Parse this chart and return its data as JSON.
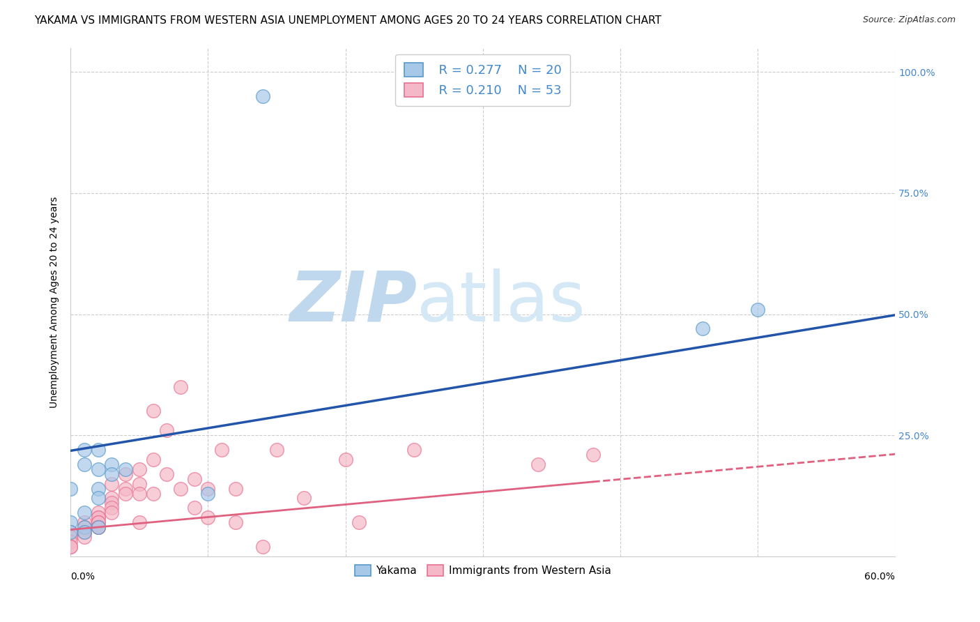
{
  "title": "YAKAMA VS IMMIGRANTS FROM WESTERN ASIA UNEMPLOYMENT AMONG AGES 20 TO 24 YEARS CORRELATION CHART",
  "source": "Source: ZipAtlas.com",
  "ylabel": "Unemployment Among Ages 20 to 24 years",
  "xlabel_bottom_left": "0.0%",
  "xlabel_bottom_right": "60.0%",
  "xmin": 0.0,
  "xmax": 0.6,
  "ymin": 0.0,
  "ymax": 1.05,
  "yticks": [
    0.0,
    0.25,
    0.5,
    0.75,
    1.0
  ],
  "ytick_labels": [
    "",
    "25.0%",
    "50.0%",
    "75.0%",
    "100.0%"
  ],
  "background_color": "#ffffff",
  "watermark_zip_color": "#b8d4e8",
  "watermark_atlas_color": "#c8dff0",
  "legend_r1": "R = 0.277",
  "legend_n1": "N = 20",
  "legend_r2": "R = 0.210",
  "legend_n2": "N = 53",
  "blue_scatter_color": "#a8c8e8",
  "blue_edge_color": "#5599cc",
  "pink_scatter_color": "#f4b8c8",
  "pink_edge_color": "#e87090",
  "blue_line_color": "#2255aa",
  "pink_line_color": "#e06080",
  "right_tick_color": "#4488cc",
  "title_fontsize": 11,
  "axis_label_fontsize": 10,
  "tick_fontsize": 10,
  "blue_line_slope": 0.467,
  "blue_line_intercept": 0.218,
  "pink_line_slope": 0.26,
  "pink_line_intercept": 0.055,
  "pink_line_solid_xmax": 0.38,
  "yakama_points_x": [
    0.0,
    0.0,
    0.0,
    0.01,
    0.01,
    0.01,
    0.01,
    0.01,
    0.02,
    0.02,
    0.02,
    0.02,
    0.02,
    0.03,
    0.03,
    0.04,
    0.1,
    0.46,
    0.5,
    0.14
  ],
  "yakama_points_y": [
    0.07,
    0.14,
    0.05,
    0.22,
    0.19,
    0.09,
    0.06,
    0.05,
    0.22,
    0.18,
    0.14,
    0.12,
    0.06,
    0.19,
    0.17,
    0.18,
    0.13,
    0.47,
    0.51,
    0.95
  ],
  "immigrants_points_x": [
    0.0,
    0.0,
    0.0,
    0.0,
    0.0,
    0.0,
    0.0,
    0.01,
    0.01,
    0.01,
    0.01,
    0.01,
    0.02,
    0.02,
    0.02,
    0.02,
    0.02,
    0.02,
    0.02,
    0.03,
    0.03,
    0.03,
    0.03,
    0.03,
    0.04,
    0.04,
    0.04,
    0.05,
    0.05,
    0.05,
    0.05,
    0.06,
    0.06,
    0.06,
    0.07,
    0.07,
    0.08,
    0.08,
    0.09,
    0.09,
    0.1,
    0.1,
    0.11,
    0.12,
    0.12,
    0.14,
    0.15,
    0.17,
    0.2,
    0.21,
    0.25,
    0.34,
    0.38
  ],
  "immigrants_points_y": [
    0.05,
    0.05,
    0.04,
    0.04,
    0.03,
    0.02,
    0.02,
    0.07,
    0.06,
    0.05,
    0.05,
    0.04,
    0.09,
    0.08,
    0.08,
    0.07,
    0.07,
    0.06,
    0.06,
    0.15,
    0.12,
    0.11,
    0.1,
    0.09,
    0.17,
    0.14,
    0.13,
    0.18,
    0.15,
    0.13,
    0.07,
    0.3,
    0.2,
    0.13,
    0.26,
    0.17,
    0.35,
    0.14,
    0.16,
    0.1,
    0.14,
    0.08,
    0.22,
    0.14,
    0.07,
    0.02,
    0.22,
    0.12,
    0.2,
    0.07,
    0.22,
    0.19,
    0.21
  ]
}
